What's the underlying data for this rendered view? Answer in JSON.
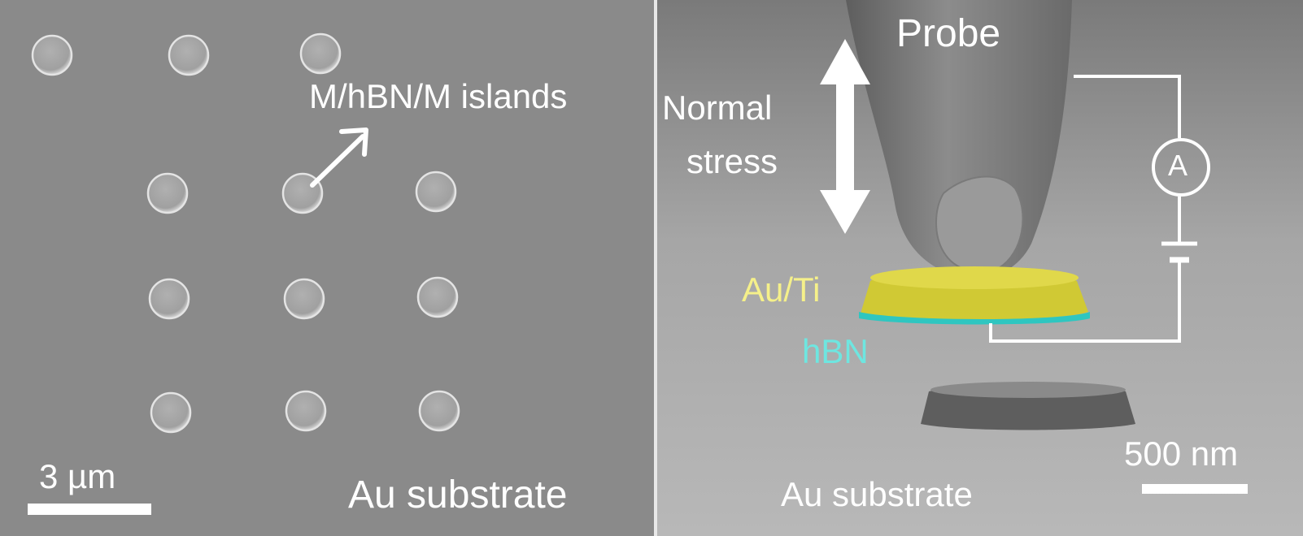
{
  "left_panel": {
    "islands_label": "M/hBN/M islands",
    "scale_label": "3 µm",
    "substrate_label": "Au substrate"
  },
  "right_panel": {
    "probe_label": "Probe",
    "stress_label_line1": "Normal",
    "stress_label_line2": "stress",
    "ammeter_label": "A",
    "top_layer_label": "Au/Ti",
    "middle_layer_label": "hBN",
    "scale_label": "500 nm",
    "substrate_label": "Au substrate"
  },
  "colors": {
    "au_ti_layer": "#d4cc2a",
    "au_ti_label": "#f5f08a",
    "hbn_layer": "#2fc6c0",
    "hbn_label": "#6ee6e0",
    "annotation": "#ffffff"
  }
}
